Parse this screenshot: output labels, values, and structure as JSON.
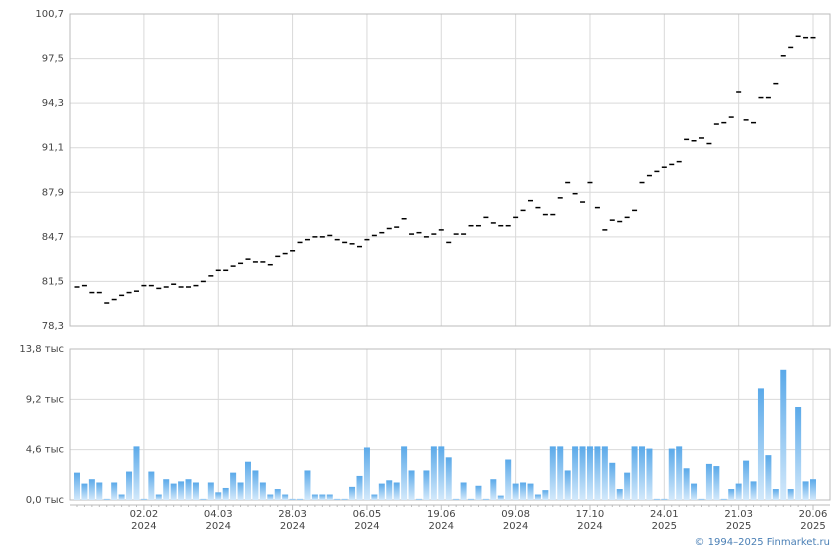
{
  "chart_data": [
    {
      "type": "marker",
      "color": "#000000",
      "values": [
        81.1,
        81.2,
        80.7,
        80.7,
        79.95,
        80.2,
        80.5,
        80.7,
        80.8,
        81.2,
        81.2,
        81.0,
        81.1,
        81.3,
        81.1,
        81.1,
        81.2,
        81.5,
        81.9,
        82.3,
        82.3,
        82.6,
        82.8,
        83.1,
        82.9,
        82.9,
        82.7,
        83.3,
        83.5,
        83.7,
        84.3,
        84.5,
        84.7,
        84.7,
        84.8,
        84.5,
        84.3,
        84.2,
        84.0,
        84.5,
        84.8,
        85.0,
        85.3,
        85.4,
        86.0,
        84.9,
        85.0,
        84.7,
        84.9,
        85.2,
        84.3,
        84.9,
        84.9,
        85.5,
        85.5,
        86.1,
        85.7,
        85.5,
        85.5,
        86.1,
        86.6,
        87.3,
        86.8,
        86.3,
        86.3,
        87.5,
        88.6,
        87.8,
        87.2,
        88.6,
        86.8,
        85.2,
        85.9,
        85.8,
        86.1,
        86.6,
        88.6,
        89.1,
        89.4,
        89.7,
        89.9,
        90.1,
        91.7,
        91.6,
        91.8,
        91.4,
        92.8,
        92.9,
        93.3,
        95.1,
        93.1,
        92.9,
        94.7,
        94.7,
        95.7,
        97.7,
        98.3,
        99.1,
        99.0,
        99.0
      ],
      "ylim": [
        78.3,
        100.7
      ],
      "yticks": [
        {
          "value": 78.3,
          "label": "78,3"
        },
        {
          "value": 81.5,
          "label": "81,5"
        },
        {
          "value": 84.7,
          "label": "84,7"
        },
        {
          "value": 87.9,
          "label": "87,9"
        },
        {
          "value": 91.1,
          "label": "91,1"
        },
        {
          "value": 94.3,
          "label": "94,3"
        },
        {
          "value": 97.5,
          "label": "97,5"
        },
        {
          "value": 100.7,
          "label": "100,7"
        }
      ],
      "grid": true
    },
    {
      "type": "bar",
      "color": "#5aa9e9",
      "color_light": "#d3e9fb",
      "categories": [
        null,
        null,
        null,
        null,
        null,
        null,
        null,
        null,
        null,
        "02.02",
        null,
        null,
        null,
        null,
        null,
        null,
        null,
        null,
        null,
        "04.03",
        null,
        null,
        null,
        null,
        null,
        null,
        null,
        null,
        null,
        "28.03",
        null,
        null,
        null,
        null,
        null,
        null,
        null,
        null,
        null,
        "06.05",
        null,
        null,
        null,
        null,
        null,
        null,
        null,
        null,
        null,
        "19.06",
        null,
        null,
        null,
        null,
        null,
        null,
        null,
        null,
        null,
        "09.08",
        null,
        null,
        null,
        null,
        null,
        null,
        null,
        null,
        null,
        "17.10",
        null,
        null,
        null,
        null,
        null,
        null,
        null,
        null,
        null,
        "24.01",
        null,
        null,
        null,
        null,
        null,
        null,
        null,
        null,
        null,
        "21.03",
        null,
        null,
        null,
        null,
        null,
        null,
        null,
        null,
        null,
        "20.06"
      ],
      "category_years": [
        null,
        null,
        null,
        null,
        null,
        null,
        null,
        null,
        null,
        "2024",
        null,
        null,
        null,
        null,
        null,
        null,
        null,
        null,
        null,
        "2024",
        null,
        null,
        null,
        null,
        null,
        null,
        null,
        null,
        null,
        "2024",
        null,
        null,
        null,
        null,
        null,
        null,
        null,
        null,
        null,
        "2024",
        null,
        null,
        null,
        null,
        null,
        null,
        null,
        null,
        null,
        "2024",
        null,
        null,
        null,
        null,
        null,
        null,
        null,
        null,
        null,
        "2024",
        null,
        null,
        null,
        null,
        null,
        null,
        null,
        null,
        null,
        "2024",
        null,
        null,
        null,
        null,
        null,
        null,
        null,
        null,
        null,
        "2025",
        null,
        null,
        null,
        null,
        null,
        null,
        null,
        null,
        null,
        "2025",
        null,
        null,
        null,
        null,
        null,
        null,
        null,
        null,
        null,
        "2025"
      ],
      "values": [
        2.5,
        1.5,
        1.9,
        1.6,
        0.1,
        1.6,
        0.5,
        2.6,
        4.9,
        0.1,
        2.6,
        0.5,
        1.9,
        1.5,
        1.7,
        1.9,
        1.6,
        0.1,
        1.6,
        0.7,
        1.1,
        2.5,
        1.6,
        3.5,
        2.7,
        1.6,
        0.5,
        1.0,
        0.5,
        0.1,
        0.1,
        2.7,
        0.5,
        0.5,
        0.5,
        0.1,
        0.1,
        1.2,
        2.2,
        4.8,
        0.5,
        1.5,
        1.8,
        1.6,
        4.9,
        2.7,
        0.1,
        2.7,
        4.9,
        4.9,
        3.9,
        0.1,
        1.6,
        0.1,
        1.3,
        0.1,
        1.9,
        0.4,
        3.7,
        1.5,
        1.6,
        1.5,
        0.5,
        0.9,
        4.9,
        4.9,
        2.7,
        4.9,
        4.9,
        4.9,
        4.9,
        4.9,
        3.4,
        1.0,
        2.5,
        4.9,
        4.9,
        4.7,
        0.1,
        0.1,
        4.7,
        4.9,
        2.9,
        1.5,
        0.1,
        3.3,
        3.1,
        0.1,
        1.0,
        1.5,
        3.6,
        1.7,
        10.2,
        4.1,
        1.0,
        11.9,
        1.0,
        8.5,
        1.7,
        1.9
      ],
      "ylim": [
        0,
        13.8
      ],
      "yticks": [
        {
          "value": 0,
          "label": "0,0 тыс"
        },
        {
          "value": 4.6,
          "label": "4,6 тыс"
        },
        {
          "value": 9.2,
          "label": "9,2 тыс"
        },
        {
          "value": 13.8,
          "label": "13,8 тыс"
        }
      ],
      "grid": true
    }
  ],
  "footer": "© 1994–2025 Finmarket.ru"
}
